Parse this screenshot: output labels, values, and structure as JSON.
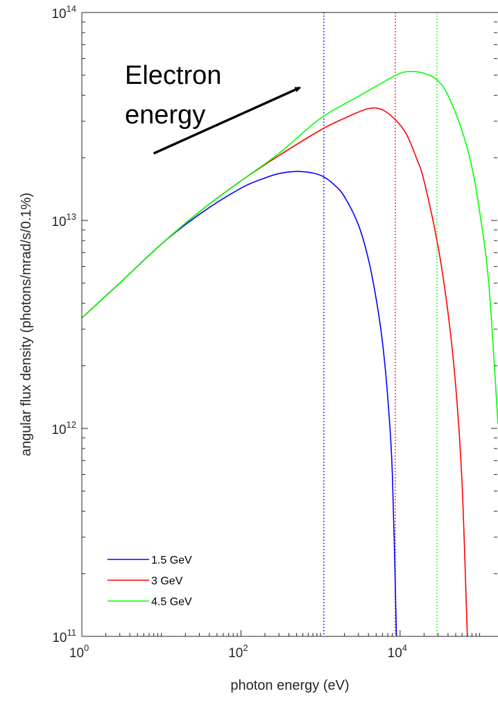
{
  "chart_data": {
    "type": "line",
    "xlabel": "photon energy (eV)",
    "ylabel": "angular flux density (photons/mrad/s/0.1%)",
    "xscale": "log",
    "yscale": "log",
    "xlim": [
      1,
      170000
    ],
    "ylim": [
      100000000000.0,
      100000000000000.0
    ],
    "xticks": [
      {
        "value": 1,
        "base": "10",
        "exp": "0"
      },
      {
        "value": 100,
        "base": "10",
        "exp": "2"
      },
      {
        "value": 10000,
        "base": "10",
        "exp": "4"
      }
    ],
    "yticks": [
      {
        "value": 100000000000.0,
        "base": "10",
        "exp": "11"
      },
      {
        "value": 1000000000000.0,
        "base": "10",
        "exp": "12"
      },
      {
        "value": 10000000000000.0,
        "base": "10",
        "exp": "13"
      },
      {
        "value": 100000000000000.0,
        "base": "10",
        "exp": "14"
      }
    ],
    "grid": false,
    "legend_position": "bottom-left",
    "series": [
      {
        "name": "1.5 GeV",
        "color": "#0000ff",
        "critical_energy": 1100,
        "x": [
          1,
          3,
          10,
          30,
          100,
          200,
          300,
          500,
          800,
          1100,
          1500,
          2000,
          3000,
          4000,
          5000,
          6000,
          7000,
          8000,
          9000
        ],
        "y": [
          3400000000000.0,
          5000000000000.0,
          7700000000000.0,
          10700000000000.0,
          14300000000000.0,
          16000000000000.0,
          16800000000000.0,
          17200000000000.0,
          16900000000000.0,
          16200000000000.0,
          14800000000000.0,
          13000000000000.0,
          9500000000000.0,
          6500000000000.0,
          4200000000000.0,
          2600000000000.0,
          1400000000000.0,
          600000000000.0,
          100000000000.0
        ]
      },
      {
        "name": "3 GeV",
        "color": "#ff0000",
        "critical_energy": 8700,
        "x": [
          1,
          3,
          10,
          30,
          100,
          300,
          1000,
          2000,
          4000,
          6000,
          8700,
          12000,
          16000,
          20000,
          30000,
          40000,
          50000,
          60000,
          70000
        ],
        "y": [
          3400000000000.0,
          5000000000000.0,
          7700000000000.0,
          11000000000000.0,
          15500000000000.0,
          20500000000000.0,
          27200000000000.0,
          31000000000000.0,
          34500000000000.0,
          34000000000000.0,
          30500000000000.0,
          26000000000000.0,
          20000000000000.0,
          15500000000000.0,
          7500000000000.0,
          3600000000000.0,
          1600000000000.0,
          550000000000.0,
          100000000000.0
        ]
      },
      {
        "name": "4.5 GeV",
        "color": "#00ff00",
        "critical_energy": 29000,
        "x": [
          1,
          3,
          10,
          30,
          100,
          300,
          1000,
          3000,
          6000,
          10000,
          14000,
          20000,
          29000,
          40000,
          60000,
          80000,
          100000,
          130000,
          170000
        ],
        "y": [
          3400000000000.0,
          5000000000000.0,
          7700000000000.0,
          11000000000000.0,
          15500000000000.0,
          21000000000000.0,
          31000000000000.0,
          39500000000000.0,
          46000000000000.0,
          51000000000000.0,
          52000000000000.0,
          51000000000000.0,
          47500000000000.0,
          40000000000000.0,
          27000000000000.0,
          18000000000000.0,
          11000000000000.0,
          5000000000000.0,
          1050000000000.0
        ]
      }
    ],
    "annotation": {
      "text_line1": "Electron",
      "text_line2": "energy",
      "arrow_from": [
        8,
        21000000000000.0
      ],
      "arrow_to": [
        550,
        43500000000000.0
      ]
    }
  }
}
